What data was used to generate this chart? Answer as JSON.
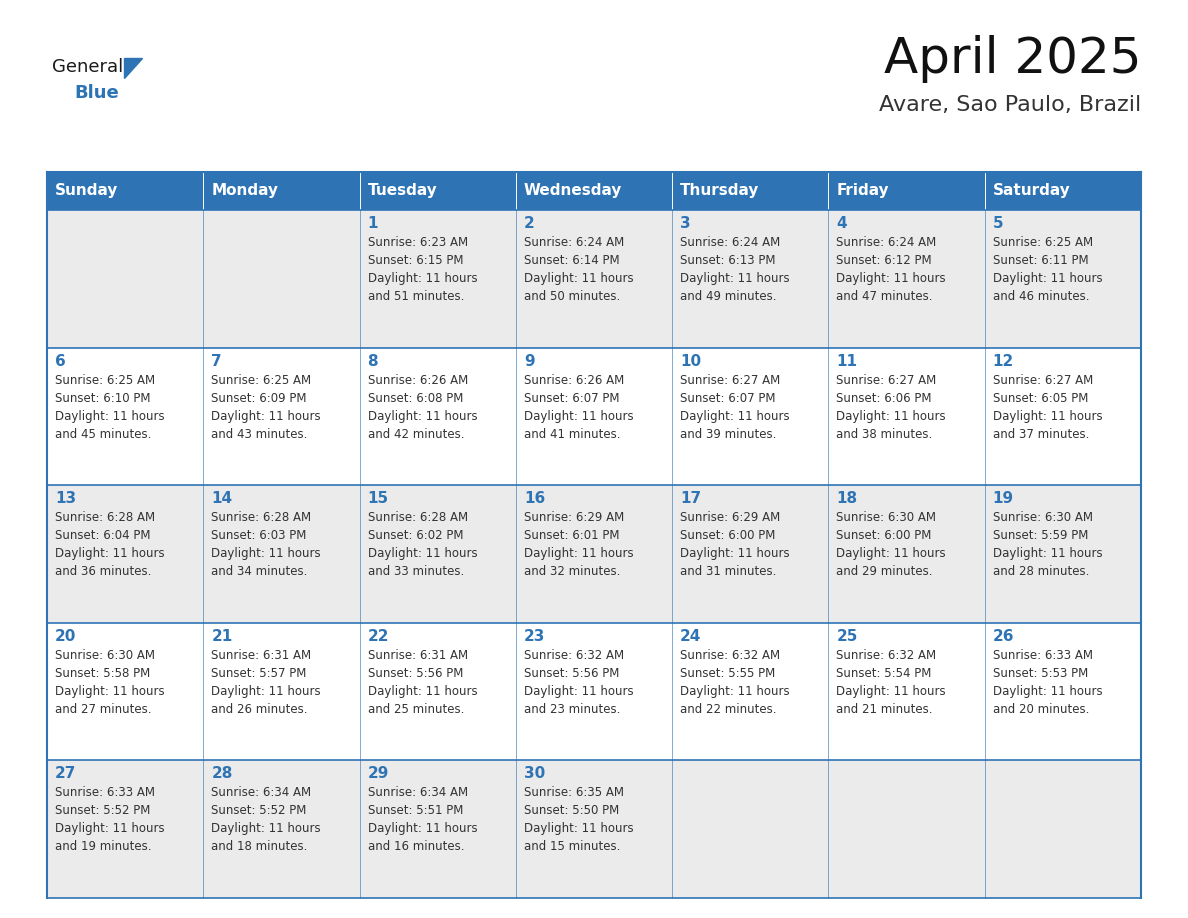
{
  "title": "April 2025",
  "subtitle": "Avare, Sao Paulo, Brazil",
  "header_bg": "#2E74B5",
  "header_text_color": "#FFFFFF",
  "cell_text_color": "#333333",
  "day_number_color": "#2E74B5",
  "border_color": "#2E74B5",
  "row_colors": [
    "#EBEBEB",
    "#FFFFFF",
    "#EBEBEB",
    "#FFFFFF",
    "#EBEBEB"
  ],
  "days_of_week": [
    "Sunday",
    "Monday",
    "Tuesday",
    "Wednesday",
    "Thursday",
    "Friday",
    "Saturday"
  ],
  "weeks": [
    [
      {
        "day": "",
        "info": ""
      },
      {
        "day": "",
        "info": ""
      },
      {
        "day": "1",
        "info": "Sunrise: 6:23 AM\nSunset: 6:15 PM\nDaylight: 11 hours\nand 51 minutes."
      },
      {
        "day": "2",
        "info": "Sunrise: 6:24 AM\nSunset: 6:14 PM\nDaylight: 11 hours\nand 50 minutes."
      },
      {
        "day": "3",
        "info": "Sunrise: 6:24 AM\nSunset: 6:13 PM\nDaylight: 11 hours\nand 49 minutes."
      },
      {
        "day": "4",
        "info": "Sunrise: 6:24 AM\nSunset: 6:12 PM\nDaylight: 11 hours\nand 47 minutes."
      },
      {
        "day": "5",
        "info": "Sunrise: 6:25 AM\nSunset: 6:11 PM\nDaylight: 11 hours\nand 46 minutes."
      }
    ],
    [
      {
        "day": "6",
        "info": "Sunrise: 6:25 AM\nSunset: 6:10 PM\nDaylight: 11 hours\nand 45 minutes."
      },
      {
        "day": "7",
        "info": "Sunrise: 6:25 AM\nSunset: 6:09 PM\nDaylight: 11 hours\nand 43 minutes."
      },
      {
        "day": "8",
        "info": "Sunrise: 6:26 AM\nSunset: 6:08 PM\nDaylight: 11 hours\nand 42 minutes."
      },
      {
        "day": "9",
        "info": "Sunrise: 6:26 AM\nSunset: 6:07 PM\nDaylight: 11 hours\nand 41 minutes."
      },
      {
        "day": "10",
        "info": "Sunrise: 6:27 AM\nSunset: 6:07 PM\nDaylight: 11 hours\nand 39 minutes."
      },
      {
        "day": "11",
        "info": "Sunrise: 6:27 AM\nSunset: 6:06 PM\nDaylight: 11 hours\nand 38 minutes."
      },
      {
        "day": "12",
        "info": "Sunrise: 6:27 AM\nSunset: 6:05 PM\nDaylight: 11 hours\nand 37 minutes."
      }
    ],
    [
      {
        "day": "13",
        "info": "Sunrise: 6:28 AM\nSunset: 6:04 PM\nDaylight: 11 hours\nand 36 minutes."
      },
      {
        "day": "14",
        "info": "Sunrise: 6:28 AM\nSunset: 6:03 PM\nDaylight: 11 hours\nand 34 minutes."
      },
      {
        "day": "15",
        "info": "Sunrise: 6:28 AM\nSunset: 6:02 PM\nDaylight: 11 hours\nand 33 minutes."
      },
      {
        "day": "16",
        "info": "Sunrise: 6:29 AM\nSunset: 6:01 PM\nDaylight: 11 hours\nand 32 minutes."
      },
      {
        "day": "17",
        "info": "Sunrise: 6:29 AM\nSunset: 6:00 PM\nDaylight: 11 hours\nand 31 minutes."
      },
      {
        "day": "18",
        "info": "Sunrise: 6:30 AM\nSunset: 6:00 PM\nDaylight: 11 hours\nand 29 minutes."
      },
      {
        "day": "19",
        "info": "Sunrise: 6:30 AM\nSunset: 5:59 PM\nDaylight: 11 hours\nand 28 minutes."
      }
    ],
    [
      {
        "day": "20",
        "info": "Sunrise: 6:30 AM\nSunset: 5:58 PM\nDaylight: 11 hours\nand 27 minutes."
      },
      {
        "day": "21",
        "info": "Sunrise: 6:31 AM\nSunset: 5:57 PM\nDaylight: 11 hours\nand 26 minutes."
      },
      {
        "day": "22",
        "info": "Sunrise: 6:31 AM\nSunset: 5:56 PM\nDaylight: 11 hours\nand 25 minutes."
      },
      {
        "day": "23",
        "info": "Sunrise: 6:32 AM\nSunset: 5:56 PM\nDaylight: 11 hours\nand 23 minutes."
      },
      {
        "day": "24",
        "info": "Sunrise: 6:32 AM\nSunset: 5:55 PM\nDaylight: 11 hours\nand 22 minutes."
      },
      {
        "day": "25",
        "info": "Sunrise: 6:32 AM\nSunset: 5:54 PM\nDaylight: 11 hours\nand 21 minutes."
      },
      {
        "day": "26",
        "info": "Sunrise: 6:33 AM\nSunset: 5:53 PM\nDaylight: 11 hours\nand 20 minutes."
      }
    ],
    [
      {
        "day": "27",
        "info": "Sunrise: 6:33 AM\nSunset: 5:52 PM\nDaylight: 11 hours\nand 19 minutes."
      },
      {
        "day": "28",
        "info": "Sunrise: 6:34 AM\nSunset: 5:52 PM\nDaylight: 11 hours\nand 18 minutes."
      },
      {
        "day": "29",
        "info": "Sunrise: 6:34 AM\nSunset: 5:51 PM\nDaylight: 11 hours\nand 16 minutes."
      },
      {
        "day": "30",
        "info": "Sunrise: 6:35 AM\nSunset: 5:50 PM\nDaylight: 11 hours\nand 15 minutes."
      },
      {
        "day": "",
        "info": ""
      },
      {
        "day": "",
        "info": ""
      },
      {
        "day": "",
        "info": ""
      }
    ]
  ],
  "logo_general_color": "#1a1a1a",
  "logo_blue_color": "#2E74B5",
  "figsize": [
    11.88,
    9.18
  ],
  "dpi": 100
}
